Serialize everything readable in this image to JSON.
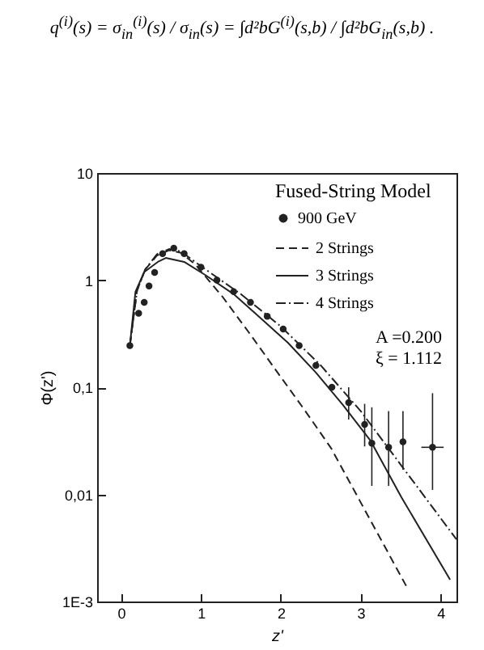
{
  "chart_data": {
    "type": "line",
    "legend_title": "Fused-String Model",
    "xlabel": "z'",
    "ylabel": "Φ(z')",
    "annotations": [
      "q$^{(i)}$(s) = σ$_{in}$$^{(i)}$(s) / σ$_{in}$(s) = ∫d²bG$^{(i)}$(s,b) / ∫d²bG$_{in}$(s,b) .",
      "A =0.200",
      "ξ = 1.112"
    ],
    "series": [
      {
        "name": "900 GeV",
        "type": "scatter",
        "color": "#222222",
        "marker": "circle",
        "x": [
          0.11,
          0.22,
          0.29,
          0.35,
          0.42,
          0.52,
          0.66,
          0.79,
          1.0,
          1.2,
          1.41,
          1.62,
          1.83,
          2.03,
          2.23,
          2.44,
          2.64,
          2.85,
          3.05,
          3.14,
          3.35,
          3.53,
          3.9
        ],
        "values": [
          0.245,
          0.49,
          0.62,
          0.88,
          1.18,
          1.77,
          1.99,
          1.77,
          1.32,
          1.0,
          0.78,
          0.62,
          0.46,
          0.35,
          0.245,
          0.16,
          0.1,
          0.072,
          0.045,
          0.03,
          0.0275,
          0.031,
          0.0275
        ],
        "errors": [
          null,
          null,
          null,
          null,
          null,
          null,
          null,
          null,
          null,
          null,
          null,
          null,
          null,
          null,
          null,
          null,
          null,
          [
            0.05,
            0.1
          ],
          [
            0.028,
            0.07
          ],
          [
            0.012,
            0.065
          ],
          [
            0.012,
            0.06
          ],
          [
            0.017,
            0.06
          ],
          [
            0.011,
            0.088
          ]
        ],
        "xerrors": [
          null,
          null,
          null,
          null,
          null,
          null,
          null,
          null,
          null,
          null,
          null,
          null,
          null,
          null,
          null,
          null,
          null,
          null,
          null,
          null,
          null,
          null,
          [
            3.76,
            4.04
          ]
        ]
      },
      {
        "name": "2 Strings",
        "type": "line",
        "line_style": "dashed",
        "color": "#222222",
        "x": [
          0.11,
          0.2,
          0.3,
          0.45,
          0.6,
          0.75,
          0.93,
          1.27,
          1.62,
          1.96,
          2.3,
          2.63,
          3.57
        ],
        "values": [
          0.245,
          0.8,
          1.25,
          1.7,
          1.9,
          1.8,
          1.4,
          0.7,
          0.31,
          0.137,
          0.061,
          0.027,
          0.0014
        ]
      },
      {
        "name": "3 Strings",
        "type": "line",
        "line_style": "solid",
        "color": "#222222",
        "x": [
          0.11,
          0.18,
          0.29,
          0.46,
          0.56,
          0.79,
          1.06,
          1.41,
          1.75,
          2.09,
          2.44,
          2.78,
          3.12,
          3.51,
          4.12
        ],
        "values": [
          0.245,
          0.78,
          1.19,
          1.48,
          1.61,
          1.48,
          1.11,
          0.74,
          0.44,
          0.26,
          0.137,
          0.068,
          0.032,
          0.0094,
          0.0016
        ]
      },
      {
        "name": "4 Strings",
        "type": "line",
        "line_style": "dashdot",
        "color": "#222222",
        "x": [
          0.11,
          0.2,
          0.3,
          0.45,
          0.6,
          0.75,
          1.0,
          1.5,
          2.0,
          2.5,
          3.0,
          3.5,
          4.2
        ],
        "values": [
          0.245,
          0.8,
          1.25,
          1.75,
          1.95,
          1.85,
          1.35,
          0.74,
          0.37,
          0.16,
          0.06,
          0.019,
          0.0038
        ]
      }
    ],
    "log": "y",
    "xlim": [
      -0.3,
      4.2
    ],
    "ylim": [
      0.001,
      10
    ],
    "xticks": [
      0,
      1,
      2,
      3,
      4
    ],
    "yticks": [
      {
        "value": 0.001,
        "label": "1E-3"
      },
      {
        "value": 0.01,
        "label": "0,01"
      },
      {
        "value": 0.1,
        "label": "0,1"
      },
      1,
      10
    ],
    "legend": "top right",
    "grid": false
  }
}
